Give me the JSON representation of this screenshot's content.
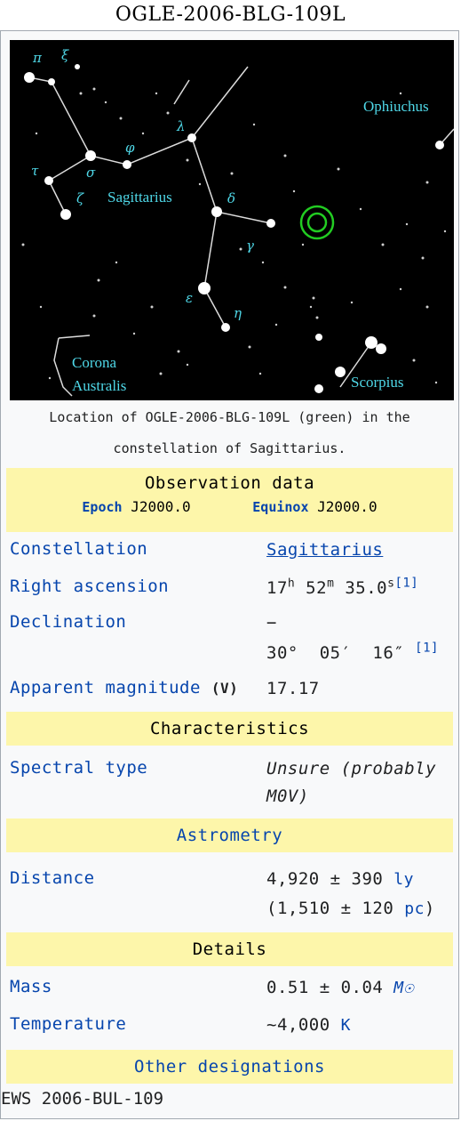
{
  "title": "OGLE-2006-BLG-109L",
  "map": {
    "labels": {
      "ophiuchus": "Ophiuchus",
      "sagittarius": "Sagittarius",
      "corona1": "Corona",
      "corona2": "Australis",
      "scorpius": "Scorpius"
    },
    "greek": {
      "pi": "π",
      "xi": "ξ",
      "tau": "τ",
      "sigma": "σ",
      "phi": "φ",
      "zeta": "ζ",
      "lambda": "λ",
      "delta": "δ",
      "gamma": "γ",
      "epsilon": "ε",
      "eta": "η"
    },
    "colors": {
      "label": "#4fd8e8",
      "target": "#22cc22"
    }
  },
  "caption": "Location of OGLE-2006-BLG-109L (green) in the constellation of Sagittarius.",
  "observation": {
    "header": "Observation data",
    "epoch_label": "Epoch",
    "epoch_value": "J2000.0",
    "equinox_label": "Equinox",
    "equinox_value": "J2000.0"
  },
  "rows": {
    "constellation": {
      "label": "Constellation",
      "value": "Sagittarius"
    },
    "ra": {
      "label": "Right ascension",
      "h": "17",
      "hs": "h",
      "m": "52",
      "ms": "m",
      "s": "35.0",
      "ss": "s",
      "ref": "[1]"
    },
    "dec": {
      "label": "Declination",
      "sign": "−",
      "value": "30°  05′  16″",
      "ref": "[1]"
    },
    "mag": {
      "label": "Apparent magnitude",
      "band": "(V)",
      "value": "17.17"
    }
  },
  "characteristics": {
    "header": "Characteristics",
    "spectral_label": "Spectral type",
    "spectral_line1": "Unsure (probably",
    "spectral_line2": "M0V)"
  },
  "astrometry": {
    "header": "Astrometry",
    "distance_label": "Distance",
    "dist_ly": "4,920 ± 390",
    "ly_unit": "ly",
    "dist_pc": "(1,510 ± 120",
    "pc_unit": "pc",
    "pc_close": ")"
  },
  "details": {
    "header": "Details",
    "mass_label": "Mass",
    "mass_value": "0.51 ± 0.04",
    "mass_unit": "M☉",
    "temp_label": "Temperature",
    "temp_value": "~4,000",
    "temp_unit": "K"
  },
  "designations": {
    "header": "Other designations",
    "value": "EWS 2006-BUL-109"
  }
}
